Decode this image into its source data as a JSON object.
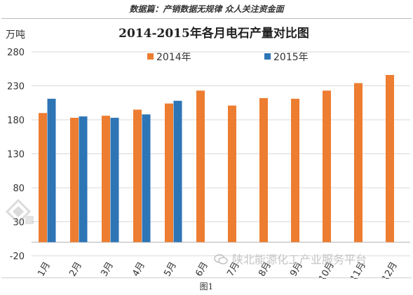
{
  "header": {
    "text": "数据篇：产销数据无规律 众人关注资金面"
  },
  "watermark": {
    "text": "陕北能源化工产业服务平台"
  },
  "caption": "图1",
  "colors": {
    "s2014": "#ED7D31",
    "s2015": "#2E75B6",
    "grid": "#D9D9D9",
    "axis": "#BFBFBF"
  },
  "chart_data": {
    "type": "bar",
    "title": "2014-2015年各月电石产量对比图",
    "ylabel": "万吨",
    "xlabel": "",
    "ylim": [
      -20,
      280
    ],
    "yticks": [
      -20,
      30,
      80,
      130,
      180,
      230,
      280
    ],
    "grid": true,
    "legend": "top-center",
    "categories": [
      "1月",
      "2月",
      "3月",
      "4月",
      "5月",
      "6月",
      "7月",
      "8月",
      "9月",
      "10月",
      "11月",
      "12月"
    ],
    "series": [
      {
        "name": "2014年",
        "color": "#ED7D31",
        "values": [
          190,
          183,
          186,
          195,
          204,
          223,
          201,
          212,
          211,
          223,
          234,
          246
        ]
      },
      {
        "name": "2015年",
        "color": "#2E75B6",
        "values": [
          211,
          185,
          183,
          188,
          208,
          null,
          null,
          null,
          null,
          null,
          null,
          null
        ]
      }
    ]
  }
}
